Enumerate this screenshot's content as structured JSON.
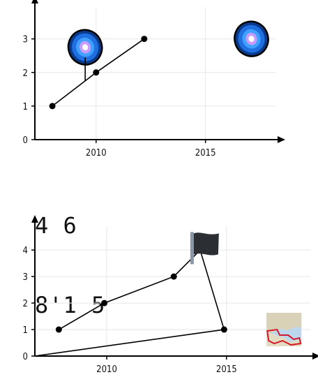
{
  "chart_data": [
    {
      "type": "line",
      "title": "",
      "xlabel": "",
      "ylabel": "",
      "xlim": [
        2007.2,
        2018.2
      ],
      "ylim": [
        0,
        3.95
      ],
      "x_ticks": [
        2010,
        2015
      ],
      "x_tick_labels": [
        "2010",
        "2015"
      ],
      "y_ticks": [
        0,
        1,
        2,
        3
      ],
      "y_tick_labels": [
        "0",
        "1",
        "2",
        "3"
      ],
      "grid": true,
      "series": [
        {
          "x": [
            2008,
            2010,
            2012.2
          ],
          "y": [
            1,
            2,
            3
          ]
        }
      ],
      "icons": [
        {
          "name": "galaxy-icon",
          "x": 2009.5,
          "y": 2.75
        },
        {
          "name": "galaxy-icon",
          "x": 2017.1,
          "y": 3.0
        }
      ]
    },
    {
      "type": "line",
      "title": "",
      "xlabel": "",
      "ylabel": "",
      "xlim": [
        2007,
        2018.5
      ],
      "ylim": [
        0,
        4.9
      ],
      "x_ticks": [
        2010,
        2015
      ],
      "x_tick_labels": [
        "2010",
        "2015"
      ],
      "y_ticks": [
        0,
        1,
        2,
        3,
        4
      ],
      "y_tick_labels": [
        "0",
        "1",
        "2",
        "3",
        "4"
      ],
      "grid": true,
      "series": [
        {
          "x": [
            2008,
            2009.9,
            2012.8,
            2013.9,
            2014.9,
            2007
          ],
          "y": [
            1,
            2,
            3,
            4,
            1,
            0
          ]
        }
      ],
      "icons": [
        {
          "name": "flag-icon",
          "x": 2014.1,
          "y": 4.1
        },
        {
          "name": "map-icon",
          "x": 2017.4,
          "y": 1.0
        }
      ]
    }
  ],
  "mid_text": {
    "line1": "4 6",
    "line2": "8'1 5"
  }
}
